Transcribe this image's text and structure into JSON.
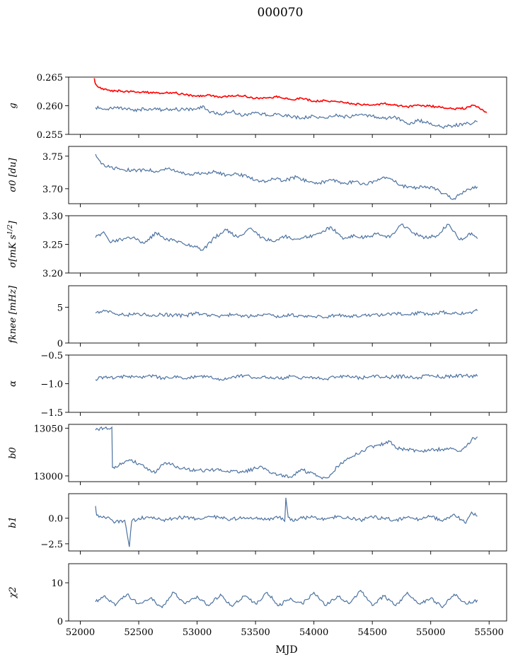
{
  "figure": {
    "title": "000070",
    "xlabel": "MJD"
  },
  "chart_data": [
    {
      "type": "line",
      "ylabel": "g",
      "ylim": [
        0.255,
        0.265
      ],
      "yticks": [
        "0.255",
        "0.260",
        "0.265"
      ],
      "xlim": [
        51900,
        55650
      ],
      "series": [
        {
          "color": "#ff0000",
          "x": [
            52120,
            52130,
            52150,
            52200,
            52300,
            52500,
            52700,
            52800,
            52900,
            53000,
            53100,
            53200,
            53300,
            53400,
            53500,
            53600,
            53700,
            53800,
            53900,
            54000,
            54100,
            54200,
            54300,
            54400,
            54500,
            54600,
            54700,
            54800,
            54900,
            55000,
            55100,
            55200,
            55250,
            55300,
            55350,
            55400,
            55450,
            55480
          ],
          "y": [
            0.2648,
            0.2638,
            0.2633,
            0.2628,
            0.2626,
            0.2624,
            0.2622,
            0.2623,
            0.2619,
            0.2617,
            0.2619,
            0.2615,
            0.2618,
            0.2617,
            0.2613,
            0.2614,
            0.2616,
            0.2611,
            0.2613,
            0.2608,
            0.2609,
            0.2607,
            0.2604,
            0.2602,
            0.2601,
            0.2604,
            0.2601,
            0.2598,
            0.2601,
            0.2599,
            0.2598,
            0.2594,
            0.2596,
            0.2595,
            0.2601,
            0.2598,
            0.2592,
            0.2588
          ]
        },
        {
          "color": "#4c72a0",
          "x": [
            52130,
            52200,
            52300,
            52400,
            52500,
            52600,
            52700,
            52800,
            52900,
            53000,
            53050,
            53100,
            53200,
            53300,
            53400,
            53500,
            53600,
            53700,
            53800,
            53900,
            54000,
            54100,
            54200,
            54300,
            54400,
            54500,
            54600,
            54700,
            54800,
            54900,
            55000,
            55100,
            55200,
            55300,
            55400
          ],
          "y": [
            0.2597,
            0.2594,
            0.2597,
            0.2593,
            0.2593,
            0.2595,
            0.2593,
            0.2594,
            0.2593,
            0.2595,
            0.26,
            0.259,
            0.2586,
            0.259,
            0.2583,
            0.2589,
            0.2584,
            0.2586,
            0.2581,
            0.2579,
            0.2582,
            0.2578,
            0.2583,
            0.258,
            0.2585,
            0.2582,
            0.2578,
            0.258,
            0.2568,
            0.2574,
            0.257,
            0.2562,
            0.2566,
            0.2568,
            0.2572
          ]
        }
      ]
    },
    {
      "type": "line",
      "ylabel": "σ0 [du]",
      "ylim": [
        3.677,
        3.765
      ],
      "yticks": [
        "3.70",
        "3.75"
      ],
      "xlim": [
        51900,
        55650
      ],
      "series": [
        {
          "color": "#4c72a0",
          "x": [
            52130,
            52180,
            52250,
            52350,
            52450,
            52550,
            52650,
            52750,
            52850,
            52950,
            53050,
            53150,
            53250,
            53350,
            53450,
            53550,
            53650,
            53750,
            53850,
            53950,
            54050,
            54150,
            54250,
            54350,
            54450,
            54550,
            54650,
            54750,
            54850,
            54950,
            55050,
            55150,
            55200,
            55250,
            55300,
            55350,
            55400
          ],
          "y": [
            3.753,
            3.738,
            3.733,
            3.73,
            3.728,
            3.729,
            3.727,
            3.731,
            3.725,
            3.722,
            3.724,
            3.726,
            3.721,
            3.723,
            3.717,
            3.711,
            3.715,
            3.713,
            3.718,
            3.711,
            3.709,
            3.713,
            3.708,
            3.711,
            3.706,
            3.715,
            3.716,
            3.705,
            3.701,
            3.704,
            3.699,
            3.688,
            3.685,
            3.692,
            3.696,
            3.7,
            3.703
          ]
        }
      ]
    },
    {
      "type": "line",
      "ylabel": "σ0[mK s^1/2]",
      "ylim": [
        3.2,
        3.3
      ],
      "yticks": [
        "3.20",
        "3.25",
        "3.30"
      ],
      "xlim": [
        51900,
        55650
      ],
      "series": [
        {
          "color": "#4c72a0",
          "x": [
            52130,
            52200,
            52250,
            52350,
            52450,
            52550,
            52650,
            52750,
            52850,
            52950,
            53050,
            53150,
            53250,
            53350,
            53450,
            53550,
            53650,
            53750,
            53850,
            53950,
            54050,
            54150,
            54250,
            54350,
            54450,
            54550,
            54650,
            54750,
            54850,
            54950,
            55050,
            55150,
            55250,
            55350,
            55400
          ],
          "y": [
            3.262,
            3.272,
            3.255,
            3.258,
            3.262,
            3.252,
            3.27,
            3.258,
            3.255,
            3.248,
            3.24,
            3.262,
            3.275,
            3.262,
            3.278,
            3.262,
            3.255,
            3.264,
            3.259,
            3.263,
            3.27,
            3.28,
            3.259,
            3.265,
            3.262,
            3.27,
            3.262,
            3.285,
            3.27,
            3.262,
            3.265,
            3.285,
            3.258,
            3.27,
            3.26
          ]
        }
      ]
    },
    {
      "type": "line",
      "ylabel": "fknee [mHz]",
      "ylim": [
        0,
        8
      ],
      "yticks": [
        "0",
        "5"
      ],
      "xlim": [
        51900,
        55650
      ],
      "series": [
        {
          "color": "#4c72a0",
          "x": [
            52130,
            52200,
            52300,
            52400,
            52500,
            52600,
            52700,
            52800,
            52900,
            53000,
            53100,
            53200,
            53300,
            53400,
            53500,
            53600,
            53700,
            53800,
            53900,
            54000,
            54100,
            54200,
            54300,
            54400,
            54500,
            54600,
            54700,
            54800,
            54900,
            55000,
            55100,
            55200,
            55300,
            55400
          ],
          "y": [
            4.2,
            4.6,
            4.0,
            3.9,
            4.1,
            3.8,
            4.0,
            3.9,
            3.8,
            4.2,
            3.9,
            3.8,
            4.0,
            3.7,
            3.8,
            4.0,
            3.6,
            3.9,
            3.8,
            3.7,
            3.6,
            3.9,
            3.8,
            3.7,
            4.0,
            3.9,
            4.1,
            4.0,
            4.2,
            4.0,
            4.3,
            4.1,
            4.2,
            4.5
          ]
        }
      ]
    },
    {
      "type": "line",
      "ylabel": "α",
      "ylim": [
        -1.5,
        -0.5
      ],
      "yticks": [
        "−1.5",
        "−1.0",
        "−0.5"
      ],
      "xlim": [
        51900,
        55650
      ],
      "series": [
        {
          "color": "#4c72a0",
          "x": [
            52130,
            52200,
            52300,
            52400,
            52500,
            52600,
            52700,
            52800,
            52900,
            53000,
            53100,
            53200,
            53300,
            53400,
            53500,
            53600,
            53700,
            53800,
            53900,
            54000,
            54100,
            54200,
            54300,
            54400,
            54500,
            54600,
            54700,
            54800,
            54900,
            55000,
            55100,
            55200,
            55300,
            55400
          ],
          "y": [
            -0.93,
            -0.88,
            -0.9,
            -0.87,
            -0.89,
            -0.86,
            -0.9,
            -0.88,
            -0.91,
            -0.87,
            -0.89,
            -0.92,
            -0.88,
            -0.86,
            -0.9,
            -0.89,
            -0.91,
            -0.87,
            -0.9,
            -0.89,
            -0.92,
            -0.88,
            -0.87,
            -0.9,
            -0.86,
            -0.89,
            -0.88,
            -0.87,
            -0.89,
            -0.86,
            -0.88,
            -0.87,
            -0.86,
            -0.87
          ]
        }
      ]
    },
    {
      "type": "line",
      "ylabel": "b0",
      "ylim": [
        12994,
        13054
      ],
      "yticks": [
        "13000",
        "13050"
      ],
      "xlim": [
        51900,
        55650
      ],
      "series": [
        {
          "color": "#4c72a0",
          "x": [
            52130,
            52150,
            52200,
            52270,
            52275,
            52300,
            52350,
            52400,
            52420,
            52500,
            52560,
            52600,
            52650,
            52700,
            52760,
            52800,
            52900,
            53000,
            53100,
            53200,
            53300,
            53400,
            53500,
            53560,
            53600,
            53700,
            53800,
            53900,
            53960,
            54000,
            54050,
            54100,
            54120,
            54150,
            54200,
            54300,
            54400,
            54500,
            54600,
            54650,
            54700,
            54800,
            54900,
            55000,
            55100,
            55200,
            55250,
            55300,
            55350,
            55400
          ],
          "y": [
            13048,
            13049,
            13050,
            13051,
            13009,
            13010,
            13012,
            13016,
            13017,
            13013,
            13008,
            13006,
            13004,
            13012,
            13014,
            13011,
            13007,
            13006,
            13006,
            13007,
            13005,
            13004,
            13008,
            13009,
            13006,
            13001,
            12999,
            13007,
            13003,
            13002,
            12999,
            12998,
            12998,
            13002,
            13010,
            13018,
            13025,
            13031,
            13034,
            13036,
            13029,
            13028,
            13026,
            13027,
            13028,
            13028,
            13026,
            13030,
            13038,
            13041
          ]
        }
      ]
    },
    {
      "type": "line",
      "ylabel": "b1",
      "ylim": [
        -3.2,
        2.4
      ],
      "yticks": [
        "−2.5",
        "0.0"
      ],
      "xlim": [
        51900,
        55650
      ],
      "series": [
        {
          "color": "#4c72a0",
          "x": [
            52130,
            52140,
            52160,
            52200,
            52300,
            52380,
            52420,
            52440,
            52500,
            52600,
            52700,
            52800,
            52900,
            53000,
            53100,
            53200,
            53300,
            53400,
            53500,
            53600,
            53700,
            53750,
            53760,
            53780,
            53800,
            53900,
            54000,
            54100,
            54200,
            54300,
            54400,
            54500,
            54600,
            54700,
            54800,
            54900,
            55000,
            55100,
            55200,
            55300,
            55350,
            55400
          ],
          "y": [
            1.2,
            0.3,
            0.1,
            0.2,
            -0.4,
            -0.2,
            -2.8,
            -0.3,
            0.0,
            0.1,
            -0.2,
            0.0,
            0.1,
            -0.1,
            0.2,
            0.0,
            -0.1,
            0.1,
            0.0,
            -0.1,
            0.1,
            -0.3,
            2.0,
            0.1,
            -0.2,
            0.0,
            0.1,
            -0.1,
            0.2,
            0.0,
            -0.2,
            0.1,
            0.0,
            -0.2,
            0.1,
            -0.1,
            0.2,
            -0.3,
            0.4,
            -0.5,
            0.6,
            0.2
          ]
        }
      ]
    },
    {
      "type": "line",
      "ylabel": "χ2",
      "ylim": [
        0,
        15
      ],
      "yticks": [
        "0",
        "10"
      ],
      "xlim": [
        51900,
        55650
      ],
      "xticks": [
        "52000",
        "52500",
        "53000",
        "53500",
        "54000",
        "54500",
        "55000",
        "55500"
      ],
      "series": [
        {
          "color": "#4c72a0",
          "x": [
            52130,
            52200,
            52300,
            52400,
            52500,
            52600,
            52700,
            52800,
            52900,
            53000,
            53100,
            53200,
            53300,
            53400,
            53500,
            53600,
            53700,
            53800,
            53900,
            54000,
            54100,
            54200,
            54300,
            54400,
            54500,
            54600,
            54700,
            54800,
            54900,
            55000,
            55100,
            55200,
            55300,
            55400
          ],
          "y": [
            5.0,
            6.5,
            4.0,
            7.0,
            4.5,
            6.0,
            3.5,
            7.5,
            4.5,
            6.5,
            4.0,
            7.0,
            3.8,
            6.5,
            4.5,
            7.5,
            4.0,
            6.0,
            4.5,
            7.5,
            4.0,
            6.5,
            4.5,
            8.0,
            4.0,
            6.5,
            4.0,
            7.5,
            4.5,
            6.0,
            3.5,
            7.0,
            4.5,
            5.5
          ]
        }
      ]
    }
  ]
}
